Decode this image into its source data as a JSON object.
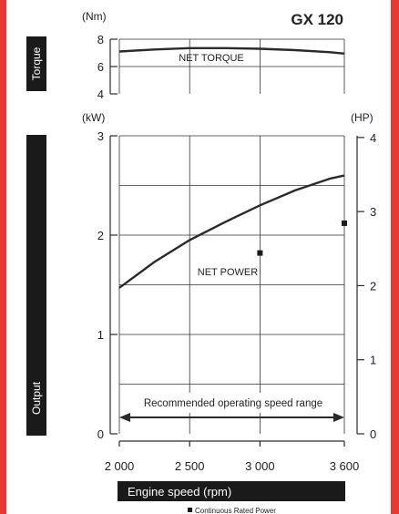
{
  "chart_data": [
    {
      "type": "line",
      "panel": "torque",
      "title": "GX 120",
      "side_label": "Torque",
      "y_unit": "(Nm)",
      "ylim": [
        4,
        8
      ],
      "yticks": [
        "8",
        "6",
        "4"
      ],
      "ytick_values": [
        8,
        6,
        4
      ],
      "x": [
        2000,
        2250,
        2500,
        2750,
        3000,
        3250,
        3500,
        3600
      ],
      "series": [
        {
          "name": "NET TORQUE",
          "values": [
            7.1,
            7.25,
            7.35,
            7.35,
            7.3,
            7.2,
            7.05,
            6.95
          ]
        }
      ],
      "grid": true
    },
    {
      "type": "line",
      "panel": "output",
      "side_label": "Output",
      "y_unit_left": "(kW)",
      "y_unit_right": "(HP)",
      "ylim": [
        0,
        3
      ],
      "yticks_left": [
        "3",
        "2",
        "1",
        "0"
      ],
      "ytick_values_left": [
        3,
        2,
        1,
        0
      ],
      "yticks_right": [
        "4",
        "3",
        "2",
        "1",
        "0"
      ],
      "ytick_values_right": [
        4,
        3,
        2,
        1,
        0
      ],
      "hp_per_kw": 1.341,
      "x": [
        2000,
        2250,
        2500,
        2750,
        3000,
        3250,
        3500,
        3600
      ],
      "series": [
        {
          "name": "NET POWER",
          "values": [
            1.47,
            1.73,
            1.95,
            2.13,
            2.3,
            2.45,
            2.57,
            2.6
          ]
        }
      ],
      "points": [
        {
          "x": 3000,
          "y": 1.82
        },
        {
          "x": 3600,
          "y": 2.12
        }
      ],
      "xlim": [
        2000,
        3600
      ],
      "xticks": [
        "2 000",
        "2 500",
        "3 000",
        "3 600"
      ],
      "xtick_values": [
        2000,
        2500,
        3000,
        3600
      ],
      "xlabel": "Engine speed (rpm)",
      "range_annotation": {
        "text": "Recommended operating speed range",
        "from": 2000,
        "to": 3600
      },
      "footnote": "Continuous Rated Power",
      "grid": true
    }
  ],
  "colors": {
    "frame": "#e8382f",
    "line": "#2a2a2a",
    "grid": "#333333",
    "label_bg": "#1a1a1a"
  }
}
